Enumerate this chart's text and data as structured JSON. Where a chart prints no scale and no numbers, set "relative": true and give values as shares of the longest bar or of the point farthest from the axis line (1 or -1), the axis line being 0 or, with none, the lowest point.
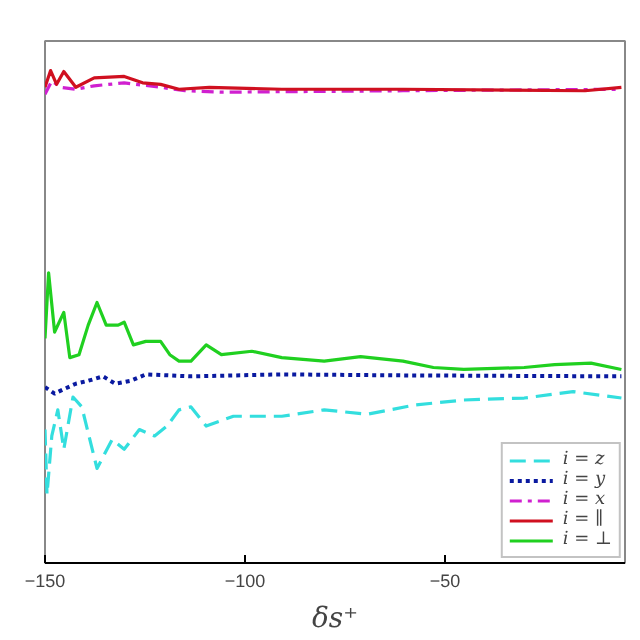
{
  "chart_data": {
    "type": "line",
    "relative": true,
    "xlabel": "δs⁺",
    "xlim": [
      -150,
      -5
    ],
    "xticks": [
      -150,
      -100,
      -50
    ],
    "grid": false,
    "legend": "bottom right",
    "tick_labels": "x",
    "series": [
      {
        "name": "i = z",
        "color": "#33dede",
        "line_style": "dashed",
        "x": [
          -150,
          -149.5,
          -148.3,
          -146.8,
          -145.3,
          -143,
          -140.8,
          -137,
          -133.2,
          -130.2,
          -126.4,
          -122.6,
          -119.5,
          -116.5,
          -113.5,
          -109.7,
          -102.9,
          -90.8,
          -80.2,
          -69.5,
          -57.4,
          -45.3,
          -30.2,
          -18.0,
          -5.9
        ],
        "values": [
          0.271,
          0.139,
          0.258,
          0.311,
          0.231,
          0.337,
          0.317,
          0.192,
          0.251,
          0.231,
          0.271,
          0.258,
          0.278,
          0.311,
          0.317,
          0.278,
          0.298,
          0.298,
          0.311,
          0.302,
          0.321,
          0.331,
          0.335,
          0.348,
          0.335
        ]
      },
      {
        "name": "i = y",
        "color": "#0a1aa0",
        "line_style": "dotted",
        "x": [
          -150,
          -147.6,
          -145.3,
          -142.3,
          -139.2,
          -135.5,
          -132.4,
          -128.6,
          -124.8,
          -113.5,
          -90.8,
          -60.5,
          -5.9
        ],
        "values": [
          0.357,
          0.344,
          0.353,
          0.364,
          0.37,
          0.379,
          0.364,
          0.37,
          0.383,
          0.379,
          0.383,
          0.381,
          0.379
        ]
      },
      {
        "name": "i = x",
        "color": "#d020d0",
        "line_style": "dashdot",
        "x": [
          -150,
          -148.3,
          -146.1,
          -142.3,
          -137.7,
          -130.2,
          -121.1,
          -115,
          -105.9,
          -60.5,
          -5.9
        ],
        "values": [
          0.952,
          0.979,
          0.966,
          0.962,
          0.969,
          0.975,
          0.966,
          0.959,
          0.956,
          0.959,
          0.962
        ]
      },
      {
        "name": "i = ∥",
        "color": "#d01020",
        "line_style": "solid",
        "x": [
          -150,
          -148.6,
          -147.1,
          -145.3,
          -142.3,
          -137.7,
          -130.2,
          -125.6,
          -121.1,
          -116.5,
          -108.9,
          -90.8,
          -60.5,
          -15,
          -5.9
        ],
        "values": [
          0.966,
          1.0,
          0.972,
          0.998,
          0.966,
          0.985,
          0.988,
          0.975,
          0.972,
          0.962,
          0.966,
          0.962,
          0.962,
          0.959,
          0.966
        ]
      },
      {
        "name": "i = ⊥",
        "color": "#20d020",
        "line_style": "solid",
        "x": [
          -150,
          -149.1,
          -147.6,
          -145.3,
          -143.8,
          -141.5,
          -139.2,
          -137,
          -134.7,
          -131.7,
          -130.2,
          -127.9,
          -124.8,
          -121.1,
          -118.8,
          -116.5,
          -113.5,
          -109.7,
          -105.9,
          -98.3,
          -90.8,
          -80.2,
          -71.1,
          -60.5,
          -52.9,
          -45.3,
          -30.2,
          -22.6,
          -13.5,
          -5.9
        ],
        "values": [
          0.456,
          0.589,
          0.469,
          0.509,
          0.417,
          0.423,
          0.483,
          0.529,
          0.483,
          0.483,
          0.489,
          0.443,
          0.45,
          0.45,
          0.423,
          0.41,
          0.41,
          0.443,
          0.423,
          0.43,
          0.417,
          0.41,
          0.419,
          0.41,
          0.397,
          0.393,
          0.397,
          0.403,
          0.406,
          0.393
        ]
      }
    ]
  }
}
